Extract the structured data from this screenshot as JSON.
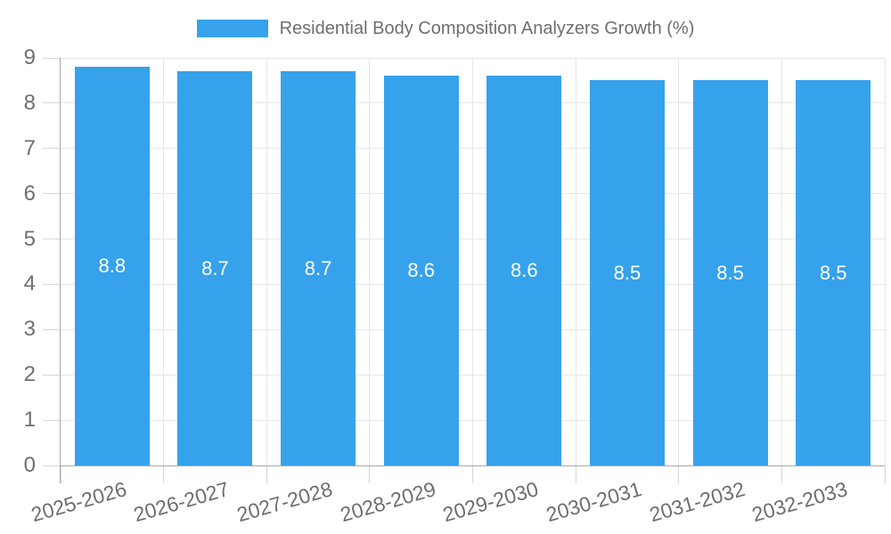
{
  "chart_data": {
    "type": "bar",
    "title": "Residential Body Composition Analyzers Growth (%)",
    "categories": [
      "2025-2026",
      "2026-2027",
      "2027-2028",
      "2028-2029",
      "2029-2030",
      "2030-2031",
      "2031-2032",
      "2032-2033"
    ],
    "values": [
      8.8,
      8.7,
      8.7,
      8.6,
      8.6,
      8.5,
      8.5,
      8.5
    ],
    "value_labels": [
      "8.8",
      "8.7",
      "8.7",
      "8.6",
      "8.6",
      "8.5",
      "8.5",
      "8.5"
    ],
    "xlabel": "",
    "ylabel": "",
    "ylim": [
      0,
      9
    ],
    "y_ticks": [
      0,
      1,
      2,
      3,
      4,
      5,
      6,
      7,
      8,
      9
    ],
    "grid": "on",
    "legend_position": "top",
    "colors": {
      "bar_fill": "#36A2EB",
      "value_label_text": "#ffffff",
      "axis_text": "#6e6e6e",
      "legend_text": "#6e6e6e",
      "gridline": "#e6e6e6",
      "tick_mark": "#d6d6d6",
      "axis_line": "#a8a8a8",
      "background": "#ffffff"
    }
  }
}
